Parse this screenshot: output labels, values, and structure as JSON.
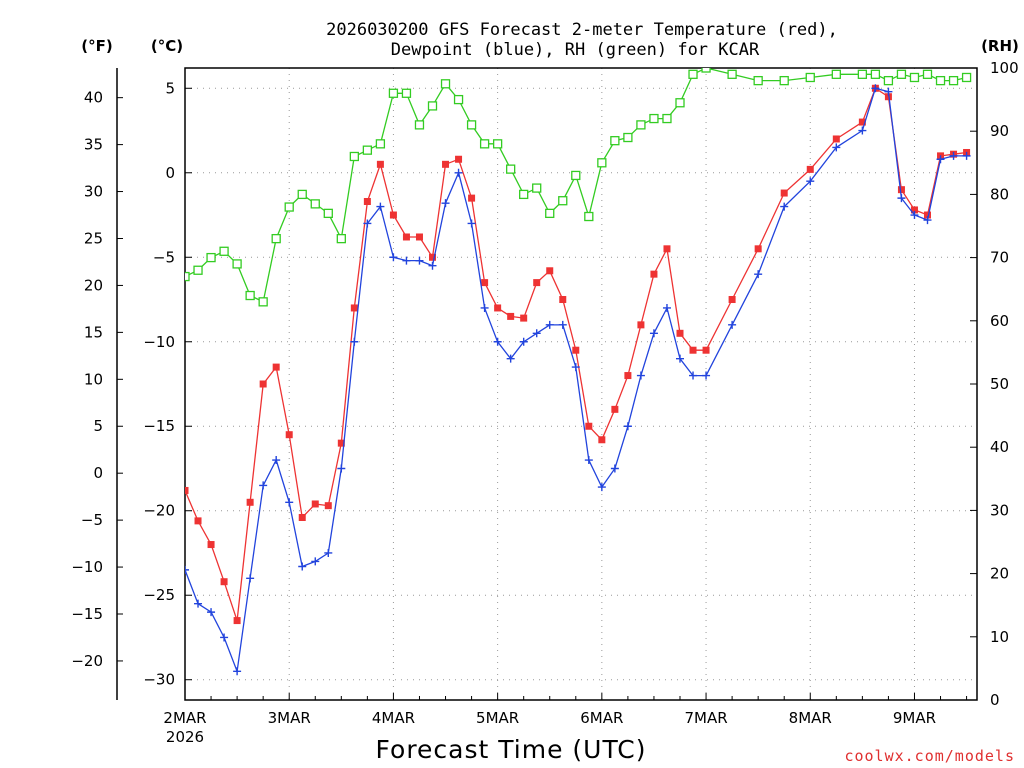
{
  "colors": {
    "temp": "#ee3333",
    "dewpoint": "#2244dd",
    "rh": "#33cc22",
    "grid": "#999999",
    "credit": "#e03030"
  },
  "credit": "coolwx.com/models",
  "chart_data": {
    "type": "line",
    "title": "2026030200 GFS Forecast 2-meter Temperature (red),",
    "subtitle": "Dewpoint (blue), RH (green) for KCAR",
    "xlabel": "Forecast Time (UTC)",
    "axis_units": {
      "left_outer": "(°F)",
      "left_inner": "(°C)",
      "right": "(RH)"
    },
    "x_axis": {
      "unit": "days since 2MAR 00Z",
      "range": [
        0,
        7.6
      ],
      "ticks": [
        {
          "x": 0,
          "label": "2MAR",
          "sublabel": "2026"
        },
        {
          "x": 1,
          "label": "3MAR"
        },
        {
          "x": 2,
          "label": "4MAR"
        },
        {
          "x": 3,
          "label": "5MAR"
        },
        {
          "x": 4,
          "label": "6MAR"
        },
        {
          "x": 5,
          "label": "7MAR"
        },
        {
          "x": 6,
          "label": "8MAR"
        },
        {
          "x": 7,
          "label": "9MAR"
        }
      ]
    },
    "y_celsius": {
      "range": [
        -31.2,
        6.2
      ],
      "ticks": [
        {
          "v": 5,
          "label": "5"
        },
        {
          "v": 0,
          "label": "0"
        },
        {
          "v": -5,
          "label": "−5"
        },
        {
          "v": -10,
          "label": "−10"
        },
        {
          "v": -15,
          "label": "−15"
        },
        {
          "v": -20,
          "label": "−20"
        },
        {
          "v": -25,
          "label": "−25"
        },
        {
          "v": -30,
          "label": "−30"
        }
      ]
    },
    "y_fahrenheit": {
      "ticks": [
        {
          "v": 40,
          "label": "40"
        },
        {
          "v": 35,
          "label": "35"
        },
        {
          "v": 30,
          "label": "30"
        },
        {
          "v": 25,
          "label": "25"
        },
        {
          "v": 20,
          "label": "20"
        },
        {
          "v": 15,
          "label": "15"
        },
        {
          "v": 10,
          "label": "10"
        },
        {
          "v": 5,
          "label": "5"
        },
        {
          "v": 0,
          "label": "0"
        },
        {
          "v": -5,
          "label": "−5"
        },
        {
          "v": -10,
          "label": "−10"
        },
        {
          "v": -15,
          "label": "−15"
        },
        {
          "v": -20,
          "label": "−20"
        }
      ]
    },
    "y_rh": {
      "range": [
        0,
        100
      ],
      "ticks": [
        {
          "v": 100,
          "label": "100"
        },
        {
          "v": 90,
          "label": "90"
        },
        {
          "v": 80,
          "label": "80"
        },
        {
          "v": 70,
          "label": "70"
        },
        {
          "v": 60,
          "label": "60"
        },
        {
          "v": 50,
          "label": "50"
        },
        {
          "v": 40,
          "label": "40"
        },
        {
          "v": 30,
          "label": "30"
        },
        {
          "v": 20,
          "label": "20"
        },
        {
          "v": 10,
          "label": "10"
        },
        {
          "v": 0,
          "label": "0"
        }
      ]
    },
    "series": [
      {
        "name": "Temperature",
        "unit": "°C",
        "marker": "filled-square",
        "x": [
          0,
          0.125,
          0.25,
          0.375,
          0.5,
          0.625,
          0.75,
          0.875,
          1,
          1.125,
          1.25,
          1.375,
          1.5,
          1.625,
          1.75,
          1.875,
          2,
          2.125,
          2.25,
          2.375,
          2.5,
          2.625,
          2.75,
          2.875,
          3,
          3.125,
          3.25,
          3.375,
          3.5,
          3.625,
          3.75,
          3.875,
          4,
          4.125,
          4.25,
          4.375,
          4.5,
          4.625,
          4.75,
          4.875,
          5,
          5.25,
          5.5,
          5.75,
          6,
          6.25,
          6.5,
          6.625,
          6.75,
          6.875,
          7,
          7.125,
          7.25,
          7.375,
          7.5
        ],
        "values": [
          -18.8,
          -20.6,
          -22.0,
          -24.2,
          -26.5,
          -19.5,
          -12.5,
          -11.5,
          -15.5,
          -20.4,
          -19.6,
          -19.7,
          -16.0,
          -8.0,
          -1.7,
          0.5,
          -2.5,
          -3.8,
          -3.8,
          -5.0,
          0.5,
          0.8,
          -1.5,
          -6.5,
          -8.0,
          -8.5,
          -8.6,
          -6.5,
          -5.8,
          -7.5,
          -10.5,
          -15.0,
          -15.8,
          -14.0,
          -12.0,
          -9.0,
          -6.0,
          -4.5,
          -9.5,
          -10.5,
          -10.5,
          -7.5,
          -4.5,
          -1.2,
          0.2,
          2.0,
          3.0,
          5.0,
          4.5,
          -1.0,
          -2.2,
          -2.5,
          1.0,
          1.1,
          1.2
        ]
      },
      {
        "name": "Dewpoint",
        "unit": "°C",
        "marker": "plus",
        "x": [
          0,
          0.125,
          0.25,
          0.375,
          0.5,
          0.625,
          0.75,
          0.875,
          1,
          1.125,
          1.25,
          1.375,
          1.5,
          1.625,
          1.75,
          1.875,
          2,
          2.125,
          2.25,
          2.375,
          2.5,
          2.625,
          2.75,
          2.875,
          3,
          3.125,
          3.25,
          3.375,
          3.5,
          3.625,
          3.75,
          3.875,
          4,
          4.125,
          4.25,
          4.375,
          4.5,
          4.625,
          4.75,
          4.875,
          5,
          5.25,
          5.5,
          5.75,
          6,
          6.25,
          6.5,
          6.625,
          6.75,
          6.875,
          7,
          7.125,
          7.25,
          7.375,
          7.5
        ],
        "values": [
          -23.5,
          -25.5,
          -26.0,
          -27.5,
          -29.5,
          -24.0,
          -18.5,
          -17.0,
          -19.5,
          -23.3,
          -23.0,
          -22.5,
          -17.5,
          -10.0,
          -3.0,
          -2.0,
          -5.0,
          -5.2,
          -5.2,
          -5.5,
          -1.8,
          0.0,
          -3.0,
          -8.0,
          -10.0,
          -11.0,
          -10.0,
          -9.5,
          -9.0,
          -9.0,
          -11.5,
          -17.0,
          -18.6,
          -17.5,
          -15.0,
          -12.0,
          -9.5,
          -8.0,
          -11.0,
          -12.0,
          -12.0,
          -9.0,
          -6.0,
          -2.0,
          -0.5,
          1.5,
          2.5,
          5.0,
          4.8,
          -1.5,
          -2.5,
          -2.8,
          0.8,
          1.0,
          1.0
        ]
      },
      {
        "name": "RH",
        "unit": "%",
        "marker": "open-square",
        "x": [
          0,
          0.125,
          0.25,
          0.375,
          0.5,
          0.625,
          0.75,
          0.875,
          1,
          1.125,
          1.25,
          1.375,
          1.5,
          1.625,
          1.75,
          1.875,
          2,
          2.125,
          2.25,
          2.375,
          2.5,
          2.625,
          2.75,
          2.875,
          3,
          3.125,
          3.25,
          3.375,
          3.5,
          3.625,
          3.75,
          3.875,
          4,
          4.125,
          4.25,
          4.375,
          4.5,
          4.625,
          4.75,
          4.875,
          5,
          5.25,
          5.5,
          5.75,
          6,
          6.25,
          6.5,
          6.625,
          6.75,
          6.875,
          7,
          7.125,
          7.25,
          7.375,
          7.5
        ],
        "values": [
          67.0,
          68.0,
          70.0,
          71.0,
          69.0,
          64.0,
          63.0,
          73.0,
          78.0,
          80.0,
          78.5,
          77.0,
          73.0,
          86.0,
          87.0,
          88.0,
          96.0,
          96.0,
          91.0,
          94.0,
          97.5,
          95.0,
          91.0,
          88.0,
          88.0,
          84.0,
          80.0,
          81.0,
          77.0,
          79.0,
          83.0,
          76.5,
          85.0,
          88.5,
          89.0,
          91.0,
          92.0,
          92.0,
          94.5,
          99.0,
          100.0,
          99.0,
          98.0,
          98.0,
          98.5,
          99.0,
          99.0,
          99.0,
          98.0,
          99.0,
          98.5,
          99.0,
          98.0,
          98.0,
          98.5
        ]
      }
    ]
  }
}
